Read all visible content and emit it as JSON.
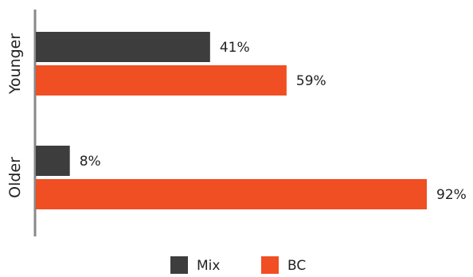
{
  "chart_data": {
    "type": "bar",
    "orientation": "horizontal",
    "categories": [
      "Younger",
      "Older"
    ],
    "series": [
      {
        "name": "Mix",
        "values": [
          41,
          8
        ],
        "color": "#3d3d3d"
      },
      {
        "name": "BC",
        "values": [
          59,
          92
        ],
        "color": "#f04e23"
      }
    ],
    "value_format": "{v}%",
    "xlim": [
      0,
      92
    ],
    "grid": false,
    "legend_position": "bottom",
    "axis_color": "#888888"
  }
}
